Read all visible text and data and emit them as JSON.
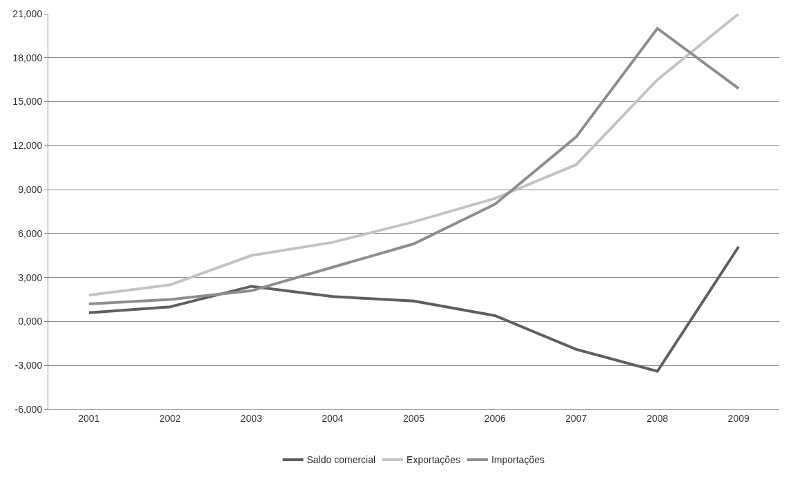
{
  "chart_data": {
    "type": "line",
    "categories": [
      "2001",
      "2002",
      "2003",
      "2004",
      "2005",
      "2006",
      "2007",
      "2008",
      "2009"
    ],
    "series": [
      {
        "name": "Saldo comercial",
        "color": "#5f5f5f",
        "values": [
          600,
          1000,
          2400,
          1700,
          1400,
          400,
          -1900,
          -3400,
          5100
        ]
      },
      {
        "name": "Exportações",
        "color": "#c4c4c4",
        "values": [
          1800,
          2500,
          4500,
          5400,
          6800,
          8400,
          10700,
          16500,
          21000
        ]
      },
      {
        "name": "Importações",
        "color": "#8e8e8e",
        "values": [
          1200,
          1500,
          2100,
          3700,
          5300,
          8000,
          12600,
          20000,
          15900
        ]
      }
    ],
    "ylim": [
      -6000,
      21000
    ],
    "yticks": [
      {
        "value": -6000,
        "label": "-6,000"
      },
      {
        "value": -3000,
        "label": "-3,000"
      },
      {
        "value": 0,
        "label": "0,000"
      },
      {
        "value": 3000,
        "label": "3,000"
      },
      {
        "value": 6000,
        "label": "6,000"
      },
      {
        "value": 9000,
        "label": "9,000"
      },
      {
        "value": 12000,
        "label": "12,000"
      },
      {
        "value": 15000,
        "label": "15,000"
      },
      {
        "value": 18000,
        "label": "18,000"
      },
      {
        "value": 21000,
        "label": "21,000"
      }
    ],
    "grid": "y",
    "legend": "bottom",
    "marker": "none",
    "line_style": "solid"
  }
}
